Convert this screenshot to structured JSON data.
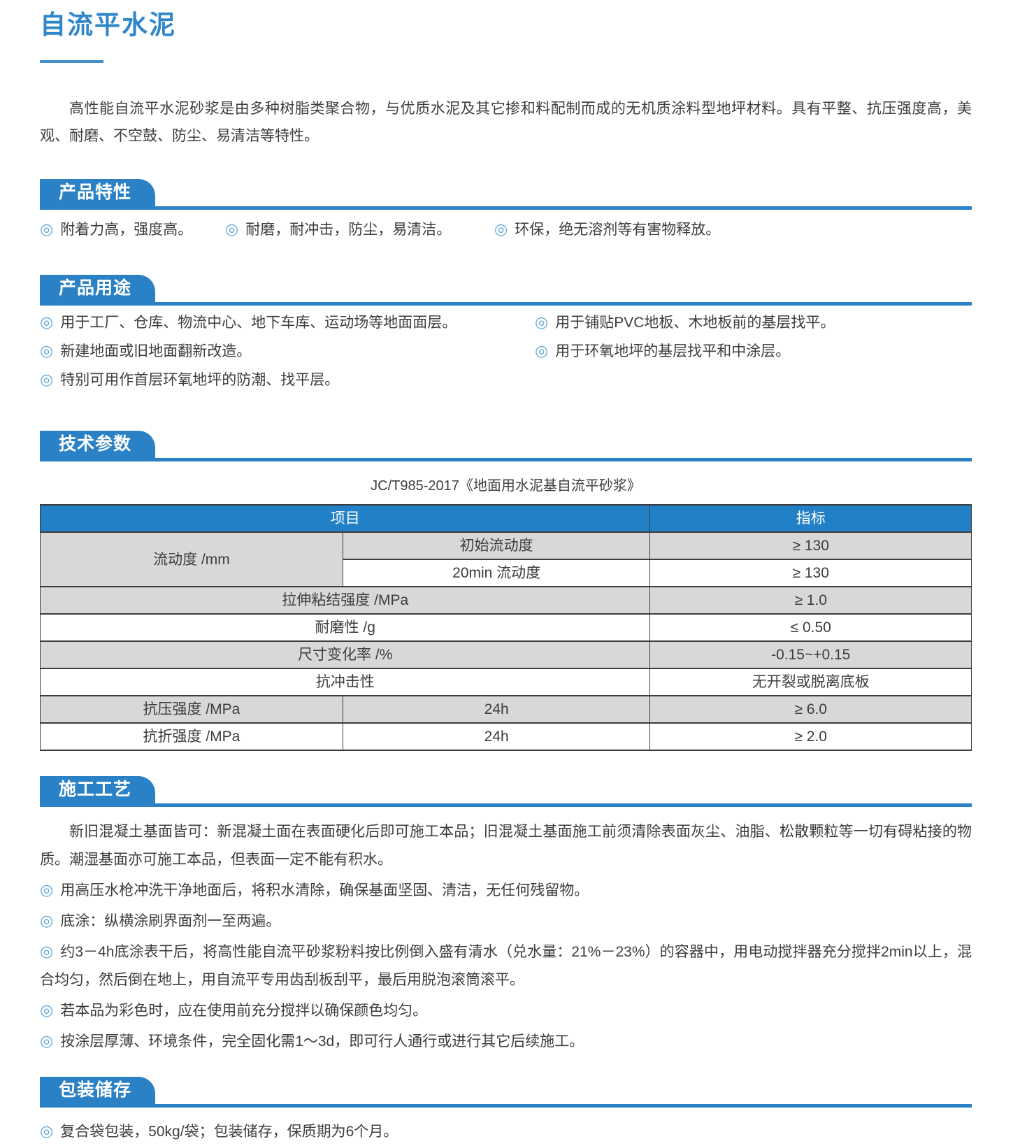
{
  "page_title": "自流平水泥",
  "intro": "高性能自流平水泥砂浆是由多种树脂类聚合物，与优质水泥及其它掺和料配制而成的无机质涂料型地坪材料。具有平整、抗压强度高，美观、耐磨、不空鼓、防尘、易清洁等特性。",
  "bullet_icon": "◎",
  "colors": {
    "accent_blue": "#2b81c5",
    "title_blue": "#2f87c9",
    "table_header_bg": "#2280c6",
    "row_gray": "#d8d8d8",
    "bullet_icon_blue": "#5fa7d9",
    "border_dark": "#3c3c3c"
  },
  "sections": {
    "features": {
      "heading": "产品特性",
      "items": [
        "附着力高，强度高。",
        "耐磨，耐冲击，防尘，易清洁。",
        "环保，绝无溶剂等有害物释放。"
      ]
    },
    "uses": {
      "heading": "产品用途",
      "left_items": [
        "用于工厂、仓库、物流中心、地下车库、运动场等地面面层。",
        "新建地面或旧地面翻新改造。",
        "特别可用作首层环氧地坪的防潮、找平层。"
      ],
      "right_items": [
        "用于铺贴PVC地板、木地板前的基层找平。",
        "用于环氧地坪的基层找平和中涂层。"
      ]
    },
    "specs": {
      "heading": "技术参数",
      "caption": "JC/T985-2017《地面用水泥基自流平砂浆》",
      "table": {
        "header": [
          "项目",
          "指标"
        ],
        "rows": [
          {
            "shade": "gray",
            "cells": [
              {
                "text": "流动度 /mm",
                "rowspan": 2
              },
              {
                "text": "初始流动度"
              },
              {
                "text": "≥ 130"
              }
            ]
          },
          {
            "shade": "white",
            "cells": [
              {
                "text": "20min 流动度"
              },
              {
                "text": "≥ 130"
              }
            ]
          },
          {
            "shade": "gray",
            "cells": [
              {
                "text": "拉伸粘结强度 /MPa",
                "colspan": 2
              },
              {
                "text": "≥ 1.0"
              }
            ]
          },
          {
            "shade": "white",
            "cells": [
              {
                "text": "耐磨性 /g",
                "colspan": 2
              },
              {
                "text": "≤ 0.50"
              }
            ]
          },
          {
            "shade": "gray",
            "cells": [
              {
                "text": "尺寸变化率 /%",
                "colspan": 2
              },
              {
                "text": "-0.15~+0.15"
              }
            ]
          },
          {
            "shade": "white",
            "cells": [
              {
                "text": "抗冲击性",
                "colspan": 2
              },
              {
                "text": "无开裂或脱离底板"
              }
            ]
          },
          {
            "shade": "gray",
            "cells": [
              {
                "text": "抗压强度 /MPa"
              },
              {
                "text": "24h"
              },
              {
                "text": "≥ 6.0"
              }
            ]
          },
          {
            "shade": "white",
            "cells": [
              {
                "text": "抗折强度 /MPa"
              },
              {
                "text": "24h"
              },
              {
                "text": "≥ 2.0"
              }
            ]
          }
        ]
      }
    },
    "process": {
      "heading": "施工工艺",
      "intro": "新旧混凝土基面皆可：新混凝土面在表面硬化后即可施工本品；旧混凝土基面施工前须清除表面灰尘、油脂、松散颗粒等一切有碍粘接的物质。潮湿基面亦可施工本品，但表面一定不能有积水。",
      "items": [
        "用高压水枪冲洗干净地面后，将积水清除，确保基面坚固、清洁，无任何残留物。",
        "底涂：纵横涂刷界面剂一至两遍。",
        "约3－4h底涂表干后，将高性能自流平砂浆粉料按比例倒入盛有清水（兑水量：21%－23%）的容器中，用电动搅拌器充分搅拌2min以上，混合均匀，然后倒在地上，用自流平专用齿刮板刮平，最后用脱泡滚筒滚平。",
        "若本品为彩色时，应在使用前充分搅拌以确保颜色均匀。",
        "按涂层厚薄、环境条件，完全固化需1～3d，即可行人通行或进行其它后续施工。"
      ]
    },
    "packaging": {
      "heading": "包装储存",
      "items": [
        "复合袋包装，50kg/袋；包装储存，保质期为6个月。"
      ]
    }
  }
}
